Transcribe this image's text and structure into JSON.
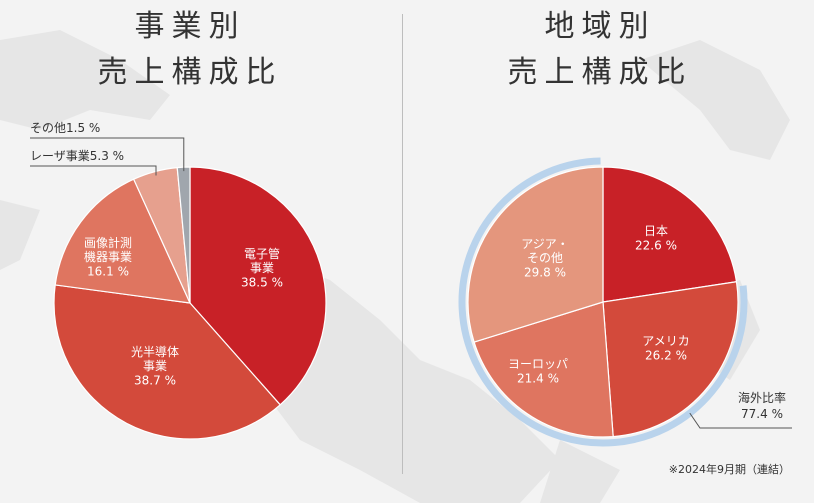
{
  "chart_data": [
    {
      "type": "pie",
      "title": "事業別\n売上構成比",
      "title_lines": [
        "事業別",
        "売上構成比"
      ],
      "slices": [
        {
          "label_lines": [
            "電子管",
            "事業"
          ],
          "value_text": "38.5 %",
          "value": 38.5,
          "color": "#c82127"
        },
        {
          "label_lines": [
            "光半導体",
            "事業"
          ],
          "value_text": "38.7 %",
          "value": 38.7,
          "color": "#d34a3b"
        },
        {
          "label_lines": [
            "画像計測",
            "機器事業"
          ],
          "value_text": "16.1 %",
          "value": 16.1,
          "color": "#df7560"
        },
        {
          "label_lines": [
            "レーザ事業5.3 %"
          ],
          "value_text": "",
          "value": 5.3,
          "color": "#e6a08e"
        },
        {
          "label_lines": [
            "その他1.5 %"
          ],
          "value_text": "",
          "value": 1.5,
          "color": "#a0a6ad"
        }
      ]
    },
    {
      "type": "pie",
      "title": "地域別\n売上構成比",
      "title_lines": [
        "地域別",
        "売上構成比"
      ],
      "slices": [
        {
          "label_lines": [
            "日本"
          ],
          "value_text": "22.6 %",
          "value": 22.6,
          "color": "#c82127"
        },
        {
          "label_lines": [
            "アメリカ"
          ],
          "value_text": "26.2 %",
          "value": 26.2,
          "color": "#d34a3b"
        },
        {
          "label_lines": [
            "ヨーロッパ"
          ],
          "value_text": "21.4 %",
          "value": 21.4,
          "color": "#df7560"
        },
        {
          "label_lines": [
            "アジア・",
            "その他"
          ],
          "value_text": "29.8 %",
          "value": 29.8,
          "color": "#e4967d"
        }
      ],
      "overseas": {
        "label": "海外比率",
        "value_text": "77.4 %",
        "value": 77.4,
        "color": "#b9d3ec"
      }
    }
  ],
  "footnote": "※2024年9月期（連結）"
}
